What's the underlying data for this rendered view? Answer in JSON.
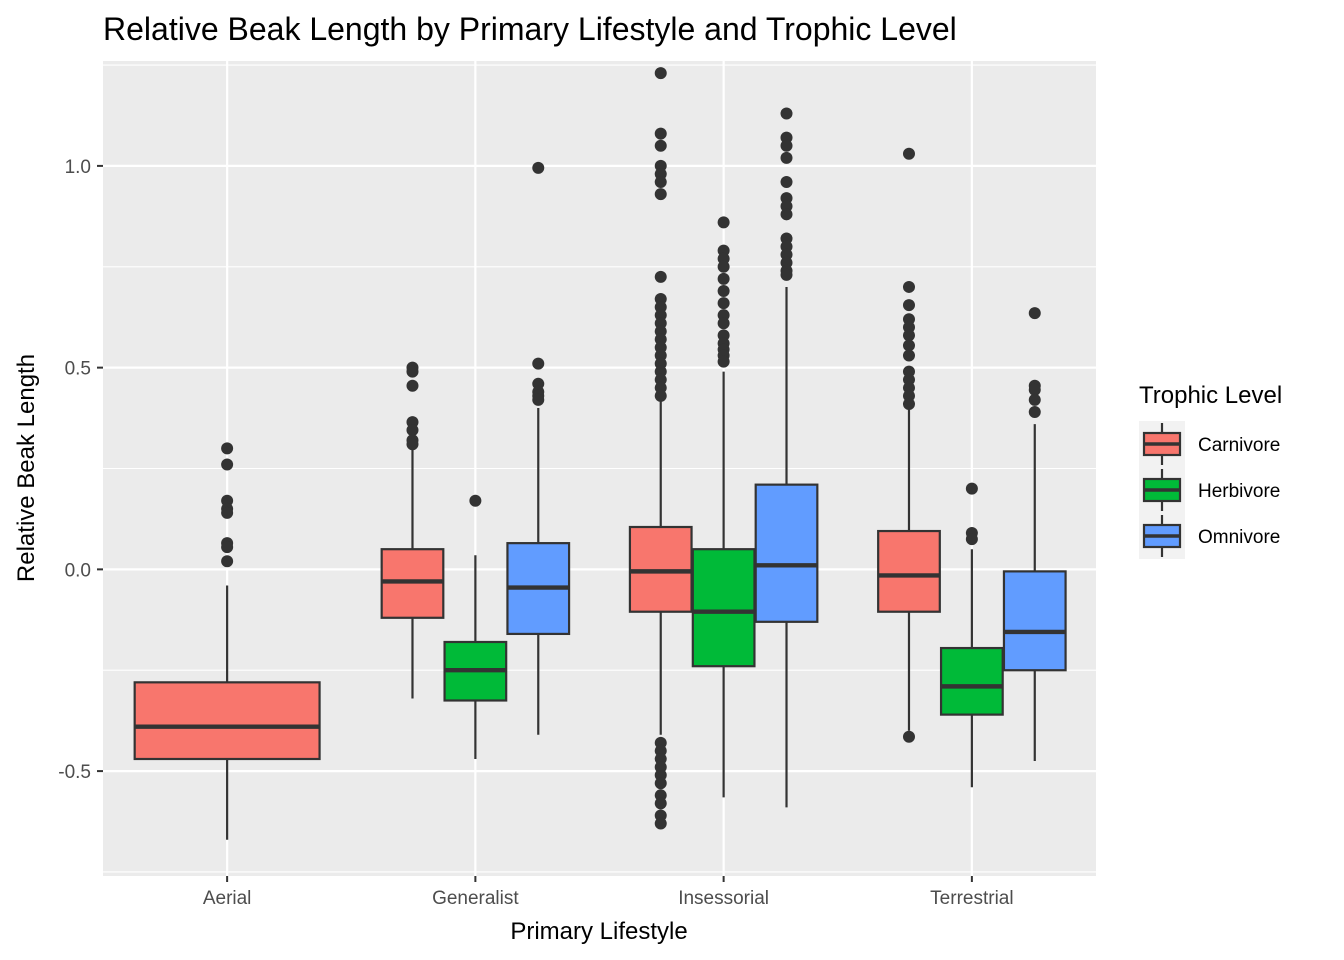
{
  "chart_data": {
    "type": "boxplot",
    "title": "Relative Beak Length by Primary Lifestyle and Trophic Level",
    "xlabel": "Primary Lifestyle",
    "ylabel": "Relative Beak Length",
    "ylim": [
      -0.76,
      1.26
    ],
    "yticks": [
      -0.5,
      0.0,
      0.5,
      1.0
    ],
    "ytick_labels": [
      "-0.5",
      "0.0",
      "0.5",
      "1.0"
    ],
    "grid": true,
    "legend": {
      "title": "Trophic Level",
      "position": "right"
    },
    "categories": [
      "Aerial",
      "Generalist",
      "Insessorial",
      "Terrestrial"
    ],
    "series": [
      {
        "name": "Carnivore",
        "color": "#F8766D",
        "boxes": [
          {
            "category": "Aerial",
            "whisker_low": -0.67,
            "q1": -0.47,
            "median": -0.39,
            "q3": -0.28,
            "whisker_high": -0.04,
            "outliers": [
              0.3,
              0.26,
              0.17,
              0.15,
              0.14,
              0.065,
              0.055,
              0.02
            ]
          },
          {
            "category": "Generalist",
            "whisker_low": -0.32,
            "q1": -0.12,
            "median": -0.03,
            "q3": 0.05,
            "whisker_high": 0.3,
            "outliers": [
              0.5,
              0.49,
              0.455,
              0.365,
              0.345,
              0.32,
              0.31
            ]
          },
          {
            "category": "Insessorial",
            "whisker_low": -0.41,
            "q1": -0.105,
            "median": -0.005,
            "q3": 0.105,
            "whisker_high": 0.42,
            "outliers": [
              1.23,
              1.08,
              1.05,
              1.0,
              0.98,
              0.96,
              0.93,
              0.725,
              0.67,
              0.65,
              0.63,
              0.61,
              0.59,
              0.57,
              0.55,
              0.53,
              0.51,
              0.49,
              0.47,
              0.45,
              0.43,
              -0.43,
              -0.45,
              -0.47,
              -0.49,
              -0.51,
              -0.53,
              -0.56,
              -0.58,
              -0.61,
              -0.63
            ]
          },
          {
            "category": "Terrestrial",
            "whisker_low": -0.4,
            "q1": -0.105,
            "median": -0.015,
            "q3": 0.095,
            "whisker_high": 0.4,
            "outliers": [
              1.03,
              0.7,
              0.655,
              0.62,
              0.6,
              0.58,
              0.555,
              0.53,
              0.49,
              0.47,
              0.45,
              0.43,
              0.41,
              -0.415
            ]
          }
        ]
      },
      {
        "name": "Herbivore",
        "color": "#00BA38",
        "boxes": [
          {
            "category": "Generalist",
            "whisker_low": -0.47,
            "q1": -0.325,
            "median": -0.25,
            "q3": -0.18,
            "whisker_high": 0.035,
            "outliers": [
              0.17
            ]
          },
          {
            "category": "Insessorial",
            "whisker_low": -0.565,
            "q1": -0.24,
            "median": -0.105,
            "q3": 0.05,
            "whisker_high": 0.49,
            "outliers": [
              0.86,
              0.79,
              0.77,
              0.75,
              0.72,
              0.69,
              0.66,
              0.63,
              0.61,
              0.58,
              0.56,
              0.545,
              0.53,
              0.515
            ]
          },
          {
            "category": "Terrestrial",
            "whisker_low": -0.54,
            "q1": -0.36,
            "median": -0.29,
            "q3": -0.195,
            "whisker_high": 0.05,
            "outliers": [
              0.2,
              0.09,
              0.075
            ]
          }
        ]
      },
      {
        "name": "Omnivore",
        "color": "#619CFF",
        "boxes": [
          {
            "category": "Generalist",
            "whisker_low": -0.41,
            "q1": -0.16,
            "median": -0.045,
            "q3": 0.065,
            "whisker_high": 0.4,
            "outliers": [
              0.995,
              0.51,
              0.46,
              0.44,
              0.43,
              0.42
            ]
          },
          {
            "category": "Insessorial",
            "whisker_low": -0.59,
            "q1": -0.13,
            "median": 0.01,
            "q3": 0.21,
            "whisker_high": 0.7,
            "outliers": [
              1.13,
              1.07,
              1.05,
              1.02,
              0.96,
              0.92,
              0.9,
              0.88,
              0.82,
              0.8,
              0.78,
              0.76,
              0.74,
              0.73
            ]
          },
          {
            "category": "Terrestrial",
            "whisker_low": -0.475,
            "q1": -0.25,
            "median": -0.155,
            "q3": -0.005,
            "whisker_high": 0.36,
            "outliers": [
              0.635,
              0.455,
              0.445,
              0.42,
              0.39
            ]
          }
        ]
      }
    ]
  }
}
